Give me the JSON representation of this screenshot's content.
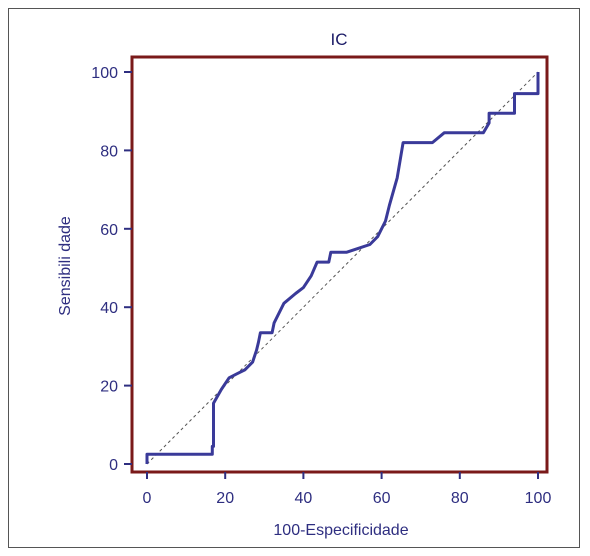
{
  "chart_data": {
    "type": "line",
    "title": "IC",
    "xlabel": "100-Especificidade",
    "ylabel": "Sensibili dade",
    "xlim": [
      0,
      100
    ],
    "ylim": [
      0,
      100
    ],
    "xticks": [
      "0",
      "20",
      "40",
      "60",
      "80",
      "100"
    ],
    "yticks": [
      "0",
      "20",
      "40",
      "60",
      "80",
      "100"
    ],
    "grid": false,
    "series": [
      {
        "type": "step",
        "color": "#3a3a99",
        "points": [
          [
            0,
            0
          ],
          [
            0,
            2.5
          ],
          [
            16.7,
            2.5
          ],
          [
            16.7,
            4.5
          ],
          [
            17,
            4.5
          ],
          [
            17,
            15.5
          ],
          [
            19,
            19
          ],
          [
            21,
            22
          ],
          [
            23,
            23
          ],
          [
            25,
            24
          ],
          [
            27,
            26
          ],
          [
            28,
            29
          ],
          [
            28.5,
            31
          ],
          [
            29,
            33.5
          ],
          [
            32,
            33.5
          ],
          [
            32.5,
            36
          ],
          [
            35,
            41
          ],
          [
            38,
            43.5
          ],
          [
            40,
            45
          ],
          [
            42,
            48
          ],
          [
            43.5,
            51.5
          ],
          [
            46,
            51.5
          ],
          [
            46.5,
            51.5
          ],
          [
            47,
            54
          ],
          [
            51,
            54
          ],
          [
            54,
            55
          ],
          [
            57,
            56
          ],
          [
            59,
            58
          ],
          [
            61,
            62
          ],
          [
            62,
            66
          ],
          [
            64,
            73
          ],
          [
            65.5,
            82
          ],
          [
            73,
            82
          ],
          [
            76,
            84.5
          ],
          [
            86,
            84.5
          ],
          [
            87.5,
            87
          ],
          [
            87.5,
            89.5
          ],
          [
            94,
            89.5
          ],
          [
            94,
            94.5
          ],
          [
            100,
            94.5
          ],
          [
            100,
            100
          ]
        ]
      },
      {
        "type": "reference",
        "color": "#555555",
        "points": [
          [
            0,
            0
          ],
          [
            100,
            100
          ]
        ]
      }
    ]
  },
  "colors": {
    "plot_border": "#7a1a1a",
    "roc_line": "#3a3a99",
    "diagonal": "#555555",
    "text": "#2e2e80"
  }
}
